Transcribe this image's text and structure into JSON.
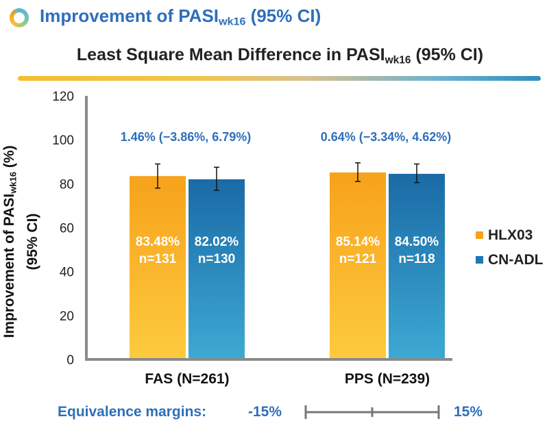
{
  "header": {
    "title_main": "Improvement of PASI",
    "title_sub": "wk16",
    "title_tail": " (95% CI)"
  },
  "chart_data": {
    "type": "bar",
    "title_main": "Least Square Mean Difference in PASI",
    "title_sub": "wk16",
    "title_tail": " (95% CI)",
    "ylabel_main": "Improvement of PASI",
    "ylabel_sub": "wk16",
    "ylabel_tail": " (%)",
    "ylabel_line2": "(95% CI)",
    "ylim": [
      0,
      120
    ],
    "yticks": [
      "0",
      "20",
      "40",
      "60",
      "80",
      "100",
      "120"
    ],
    "categories": [
      "FAS (N=261)",
      "PPS (N=239)"
    ],
    "series": [
      {
        "name": "HLX03",
        "color": "#f7a21b",
        "values": [
          83.48,
          85.14
        ],
        "err_low": [
          78.0,
          81.0
        ],
        "err_high": [
          89.0,
          89.5
        ],
        "value_labels": [
          "83.48%",
          "85.14%"
        ],
        "n_labels": [
          "n=131",
          "n=121"
        ]
      },
      {
        "name": "CN-ADL",
        "color": "#1f77b4",
        "values": [
          82.02,
          84.5
        ],
        "err_low": [
          77.0,
          80.5
        ],
        "err_high": [
          87.5,
          89.0
        ],
        "value_labels": [
          "82.02%",
          "84.50%"
        ],
        "n_labels": [
          "n=130",
          "n=118"
        ]
      }
    ],
    "differences": [
      "1.46% (−3.86%, 6.79%)",
      "0.64% (−3.34%, 4.62%)"
    ],
    "legend_position": "right",
    "grid": false
  },
  "equivalence": {
    "label": "Equivalence margins:",
    "low": "-15%",
    "high": "15%"
  },
  "colors": {
    "accent_blue": "#2e6fba",
    "orange": "#f7a21b",
    "blue": "#1f77b4"
  }
}
